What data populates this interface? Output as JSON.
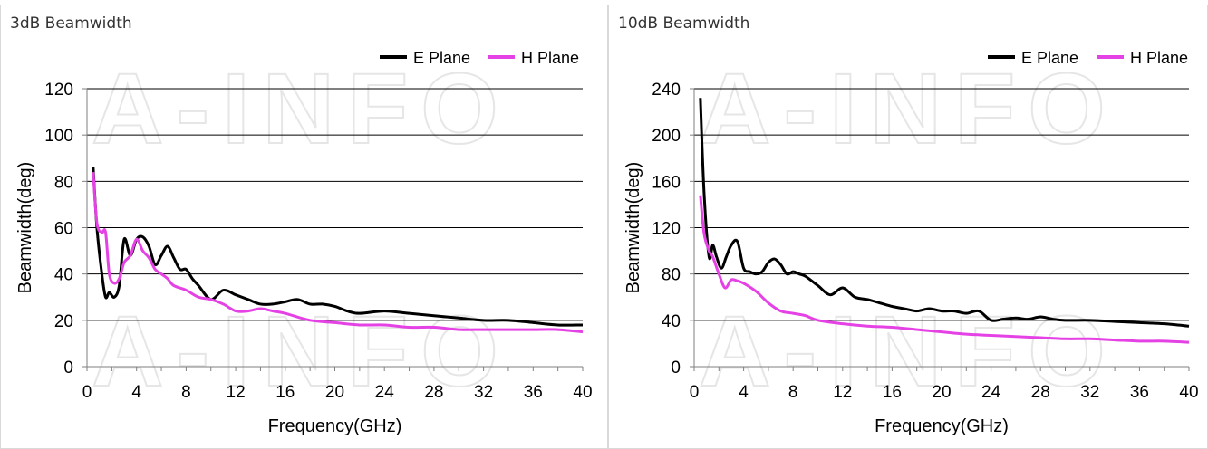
{
  "chart_data": [
    {
      "type": "line",
      "title": "3dB Beamwidth",
      "xlabel": "Frequency(GHz)",
      "ylabel": "Beamwidth(deg)",
      "xlim": [
        0,
        40
      ],
      "ylim": [
        0,
        120
      ],
      "xticks": [
        0,
        4,
        8,
        12,
        16,
        20,
        24,
        28,
        32,
        36,
        40
      ],
      "yticks": [
        0,
        20,
        40,
        60,
        80,
        100,
        120
      ],
      "grid": "horizontal",
      "legend": "top-right",
      "series": [
        {
          "name": "E Plane",
          "color": "#000000",
          "x": [
            0.5,
            0.8,
            1.2,
            1.5,
            1.8,
            2.2,
            2.6,
            3.0,
            3.5,
            4.0,
            4.5,
            5.0,
            5.5,
            6.0,
            6.5,
            7.0,
            7.5,
            8.0,
            8.5,
            9.0,
            10,
            11,
            12,
            13,
            14,
            15,
            16,
            17,
            18,
            19,
            20,
            21,
            22,
            24,
            26,
            28,
            30,
            32,
            34,
            36,
            38,
            40
          ],
          "y": [
            86,
            60,
            40,
            30,
            32,
            30,
            35,
            55,
            48,
            55,
            56,
            52,
            44,
            48,
            52,
            47,
            42,
            42,
            38,
            35,
            29,
            33,
            31,
            29,
            27,
            27,
            28,
            29,
            27,
            27,
            26,
            24,
            23,
            24,
            23,
            22,
            21,
            20,
            20,
            19,
            18,
            18
          ]
        },
        {
          "name": "H Plane",
          "color": "#e542e5",
          "x": [
            0.5,
            0.8,
            1.2,
            1.5,
            1.8,
            2.2,
            2.6,
            3.0,
            3.5,
            4.0,
            4.5,
            5.0,
            5.5,
            6.0,
            6.5,
            7.0,
            8.0,
            9.0,
            10,
            11,
            12,
            13,
            14,
            15,
            16,
            18,
            20,
            22,
            24,
            26,
            28,
            30,
            32,
            34,
            36,
            38,
            40
          ],
          "y": [
            84,
            62,
            58,
            58,
            40,
            36,
            38,
            45,
            48,
            55,
            50,
            47,
            42,
            40,
            38,
            35,
            33,
            30,
            29,
            27,
            24,
            24,
            25,
            24,
            23,
            20,
            19,
            18,
            18,
            17,
            17,
            16,
            16,
            16,
            16,
            16,
            15
          ]
        }
      ]
    },
    {
      "type": "line",
      "title": "10dB Beamwidth",
      "xlabel": "Frequency(GHz)",
      "ylabel": "Beamwidth(deg)",
      "xlim": [
        0,
        40
      ],
      "ylim": [
        0,
        240
      ],
      "xticks": [
        0,
        4,
        8,
        12,
        16,
        20,
        24,
        28,
        32,
        36,
        40
      ],
      "yticks": [
        0,
        40,
        80,
        120,
        160,
        200,
        240
      ],
      "grid": "horizontal",
      "legend": "top-right",
      "series": [
        {
          "name": "E Plane",
          "color": "#000000",
          "x": [
            0.5,
            0.8,
            1.2,
            1.5,
            1.8,
            2.2,
            2.6,
            3.0,
            3.5,
            4.0,
            4.5,
            5.0,
            5.5,
            6.0,
            6.5,
            7.0,
            7.5,
            8.0,
            8.5,
            9.0,
            10,
            11,
            12,
            13,
            14,
            15,
            16,
            17,
            18,
            19,
            20,
            21,
            22,
            23,
            24,
            25,
            26,
            27,
            28,
            29,
            30,
            32,
            34,
            36,
            38,
            40
          ],
          "y": [
            232,
            150,
            95,
            105,
            95,
            85,
            95,
            105,
            108,
            85,
            82,
            80,
            82,
            90,
            93,
            88,
            80,
            82,
            80,
            78,
            70,
            62,
            68,
            60,
            58,
            55,
            52,
            50,
            48,
            50,
            48,
            48,
            46,
            48,
            40,
            41,
            42,
            41,
            43,
            41,
            40,
            40,
            39,
            38,
            37,
            35
          ]
        },
        {
          "name": "H Plane",
          "color": "#e542e5",
          "x": [
            0.5,
            0.8,
            1.2,
            1.5,
            2.0,
            2.5,
            3.0,
            3.5,
            4.0,
            5.0,
            6.0,
            7.0,
            8.0,
            9.0,
            10,
            12,
            14,
            16,
            18,
            20,
            22,
            24,
            26,
            28,
            30,
            32,
            34,
            36,
            38,
            40
          ],
          "y": [
            148,
            115,
            100,
            95,
            80,
            68,
            75,
            74,
            72,
            65,
            55,
            48,
            46,
            44,
            40,
            37,
            35,
            34,
            32,
            30,
            28,
            27,
            26,
            25,
            24,
            24,
            23,
            22,
            22,
            21
          ]
        }
      ]
    }
  ],
  "watermark": "A-INFO"
}
